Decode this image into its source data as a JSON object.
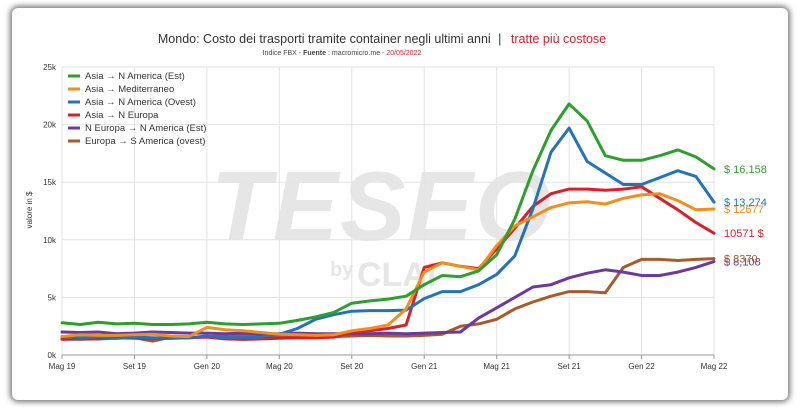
{
  "chart_data": {
    "type": "line",
    "title": "Mondo: Costo dei trasporti tramite container negli ultimi anni",
    "title_separator": "|",
    "title_highlight": "tratte più costose",
    "subtitle_prefix": "Indice FBX - ",
    "subtitle_source_label": "Fuente",
    "subtitle_source": " : macromicro.me - ",
    "subtitle_date": "20/05/2022",
    "watermark": "TESEO",
    "watermark_by": "by",
    "watermark_brand": "CLAI",
    "ylabel": "valore in $",
    "xlabel": "",
    "ylim": [
      0,
      25000
    ],
    "y_ticks": [
      {
        "value": 0,
        "label": "0k"
      },
      {
        "value": 5000,
        "label": "5k"
      },
      {
        "value": 10000,
        "label": "10k"
      },
      {
        "value": 15000,
        "label": "15k"
      },
      {
        "value": 20000,
        "label": "20k"
      },
      {
        "value": 25000,
        "label": "25k"
      }
    ],
    "x_ticks": [
      {
        "index": 0,
        "label": "Mag 19"
      },
      {
        "index": 8,
        "label": "Set 19"
      },
      {
        "index": 16,
        "label": "Gen 20"
      },
      {
        "index": 24,
        "label": "Mag 20"
      },
      {
        "index": 32,
        "label": "Set 20"
      },
      {
        "index": 40,
        "label": "Gen 21"
      },
      {
        "index": 48,
        "label": "Mag 21"
      },
      {
        "index": 56,
        "label": "Set 21"
      },
      {
        "index": 64,
        "label": "Gen 22"
      },
      {
        "index": 72,
        "label": "Mag 22"
      }
    ],
    "grid": true,
    "legend_position": "top-left",
    "series": [
      {
        "name": "Asia → N America (Est)",
        "color": "#2e9e2e",
        "end_label": "$ 16,158",
        "points": [
          [
            0,
            2800
          ],
          [
            2,
            2650
          ],
          [
            4,
            2850
          ],
          [
            6,
            2700
          ],
          [
            8,
            2750
          ],
          [
            10,
            2650
          ],
          [
            12,
            2650
          ],
          [
            14,
            2700
          ],
          [
            16,
            2850
          ],
          [
            18,
            2700
          ],
          [
            20,
            2650
          ],
          [
            22,
            2700
          ],
          [
            24,
            2750
          ],
          [
            26,
            3000
          ],
          [
            28,
            3300
          ],
          [
            30,
            3700
          ],
          [
            32,
            4500
          ],
          [
            34,
            4700
          ],
          [
            36,
            4850
          ],
          [
            38,
            5100
          ],
          [
            40,
            6100
          ],
          [
            42,
            6900
          ],
          [
            44,
            6800
          ],
          [
            46,
            7300
          ],
          [
            48,
            8700
          ],
          [
            50,
            11800
          ],
          [
            52,
            16000
          ],
          [
            54,
            19500
          ],
          [
            56,
            21800
          ],
          [
            58,
            20300
          ],
          [
            60,
            17300
          ],
          [
            62,
            16900
          ],
          [
            64,
            16900
          ],
          [
            66,
            17300
          ],
          [
            68,
            17800
          ],
          [
            70,
            17200
          ],
          [
            72,
            16158
          ]
        ]
      },
      {
        "name": "Asia → Mediterraneo",
        "color": "#f28e1c",
        "end_label": "$ 12677",
        "points": [
          [
            0,
            1600
          ],
          [
            2,
            1750
          ],
          [
            4,
            1700
          ],
          [
            6,
            1700
          ],
          [
            8,
            1750
          ],
          [
            10,
            1800
          ],
          [
            12,
            1650
          ],
          [
            14,
            1600
          ],
          [
            16,
            2400
          ],
          [
            18,
            2200
          ],
          [
            20,
            2100
          ],
          [
            22,
            1950
          ],
          [
            24,
            1800
          ],
          [
            26,
            1750
          ],
          [
            28,
            1700
          ],
          [
            30,
            1750
          ],
          [
            32,
            2100
          ],
          [
            34,
            2300
          ],
          [
            36,
            2600
          ],
          [
            38,
            4000
          ],
          [
            40,
            7200
          ],
          [
            42,
            8000
          ],
          [
            44,
            7700
          ],
          [
            46,
            7400
          ],
          [
            48,
            9500
          ],
          [
            50,
            11200
          ],
          [
            52,
            12000
          ],
          [
            54,
            12800
          ],
          [
            56,
            13200
          ],
          [
            58,
            13300
          ],
          [
            60,
            13100
          ],
          [
            62,
            13600
          ],
          [
            64,
            13900
          ],
          [
            66,
            14000
          ],
          [
            68,
            13400
          ],
          [
            70,
            12600
          ],
          [
            72,
            12677
          ]
        ]
      },
      {
        "name": "Asia → N America (Ovest)",
        "color": "#2474b5",
        "end_label": "$ 13,274",
        "points": [
          [
            0,
            1600
          ],
          [
            2,
            1500
          ],
          [
            4,
            1550
          ],
          [
            6,
            1450
          ],
          [
            8,
            1550
          ],
          [
            10,
            1500
          ],
          [
            12,
            1450
          ],
          [
            14,
            1500
          ],
          [
            16,
            1650
          ],
          [
            18,
            1500
          ],
          [
            20,
            1500
          ],
          [
            22,
            1550
          ],
          [
            24,
            1800
          ],
          [
            26,
            2300
          ],
          [
            28,
            3100
          ],
          [
            30,
            3500
          ],
          [
            32,
            3800
          ],
          [
            34,
            3850
          ],
          [
            36,
            3850
          ],
          [
            38,
            3900
          ],
          [
            40,
            4900
          ],
          [
            42,
            5500
          ],
          [
            44,
            5500
          ],
          [
            46,
            6100
          ],
          [
            48,
            7000
          ],
          [
            50,
            8600
          ],
          [
            52,
            12700
          ],
          [
            54,
            17600
          ],
          [
            56,
            19700
          ],
          [
            58,
            16800
          ],
          [
            60,
            15800
          ],
          [
            62,
            14800
          ],
          [
            64,
            14800
          ],
          [
            66,
            15400
          ],
          [
            68,
            16000
          ],
          [
            70,
            15500
          ],
          [
            72,
            13274
          ]
        ]
      },
      {
        "name": "Asia → N Europa",
        "color": "#d9202a",
        "end_label": "10571 $",
        "points": [
          [
            0,
            1400
          ],
          [
            2,
            1450
          ],
          [
            4,
            1400
          ],
          [
            6,
            1500
          ],
          [
            8,
            1450
          ],
          [
            10,
            1400
          ],
          [
            12,
            1450
          ],
          [
            14,
            1500
          ],
          [
            16,
            1550
          ],
          [
            18,
            1400
          ],
          [
            20,
            1350
          ],
          [
            22,
            1400
          ],
          [
            24,
            1450
          ],
          [
            26,
            1500
          ],
          [
            28,
            1500
          ],
          [
            30,
            1550
          ],
          [
            32,
            2000
          ],
          [
            34,
            2100
          ],
          [
            36,
            2300
          ],
          [
            38,
            2600
          ],
          [
            40,
            7600
          ],
          [
            42,
            8000
          ],
          [
            44,
            7700
          ],
          [
            46,
            7500
          ],
          [
            48,
            9200
          ],
          [
            50,
            11000
          ],
          [
            52,
            12900
          ],
          [
            54,
            14000
          ],
          [
            56,
            14400
          ],
          [
            58,
            14400
          ],
          [
            60,
            14300
          ],
          [
            62,
            14400
          ],
          [
            64,
            14600
          ],
          [
            66,
            13600
          ],
          [
            68,
            12600
          ],
          [
            70,
            11500
          ],
          [
            72,
            10571
          ]
        ]
      },
      {
        "name": "N Europa → N America (Est)",
        "color": "#6a3aa0",
        "end_label": "$ 8,108",
        "points": [
          [
            0,
            2000
          ],
          [
            2,
            1950
          ],
          [
            4,
            2000
          ],
          [
            6,
            1850
          ],
          [
            8,
            1900
          ],
          [
            10,
            2000
          ],
          [
            12,
            1950
          ],
          [
            14,
            1900
          ],
          [
            16,
            1900
          ],
          [
            18,
            1850
          ],
          [
            20,
            1900
          ],
          [
            22,
            1800
          ],
          [
            24,
            1850
          ],
          [
            26,
            1900
          ],
          [
            28,
            1850
          ],
          [
            30,
            1850
          ],
          [
            32,
            1850
          ],
          [
            34,
            1850
          ],
          [
            36,
            1900
          ],
          [
            38,
            1850
          ],
          [
            40,
            1900
          ],
          [
            42,
            1950
          ],
          [
            44,
            2000
          ],
          [
            46,
            3200
          ],
          [
            48,
            4100
          ],
          [
            50,
            5000
          ],
          [
            52,
            5900
          ],
          [
            54,
            6100
          ],
          [
            56,
            6700
          ],
          [
            58,
            7100
          ],
          [
            60,
            7400
          ],
          [
            62,
            7200
          ],
          [
            64,
            6900
          ],
          [
            66,
            6900
          ],
          [
            68,
            7200
          ],
          [
            70,
            7600
          ],
          [
            72,
            8108
          ]
        ]
      },
      {
        "name": "Europa → S America (ovest)",
        "color": "#a85a2b",
        "end_label": "$ 8370",
        "points": [
          [
            0,
            1350
          ],
          [
            2,
            1350
          ],
          [
            4,
            1400
          ],
          [
            6,
            1450
          ],
          [
            8,
            1500
          ],
          [
            10,
            1200
          ],
          [
            12,
            1550
          ],
          [
            14,
            1500
          ],
          [
            16,
            1600
          ],
          [
            18,
            1650
          ],
          [
            20,
            1650
          ],
          [
            22,
            1600
          ],
          [
            24,
            1600
          ],
          [
            26,
            1650
          ],
          [
            28,
            1600
          ],
          [
            30,
            1600
          ],
          [
            32,
            1650
          ],
          [
            34,
            1700
          ],
          [
            36,
            1650
          ],
          [
            38,
            1650
          ],
          [
            40,
            1700
          ],
          [
            42,
            1800
          ],
          [
            44,
            2500
          ],
          [
            46,
            2700
          ],
          [
            48,
            3100
          ],
          [
            50,
            4000
          ],
          [
            52,
            4600
          ],
          [
            54,
            5100
          ],
          [
            56,
            5500
          ],
          [
            58,
            5500
          ],
          [
            60,
            5400
          ],
          [
            62,
            7600
          ],
          [
            64,
            8300
          ],
          [
            66,
            8300
          ],
          [
            68,
            8200
          ],
          [
            70,
            8300
          ],
          [
            72,
            8370
          ]
        ]
      }
    ]
  }
}
